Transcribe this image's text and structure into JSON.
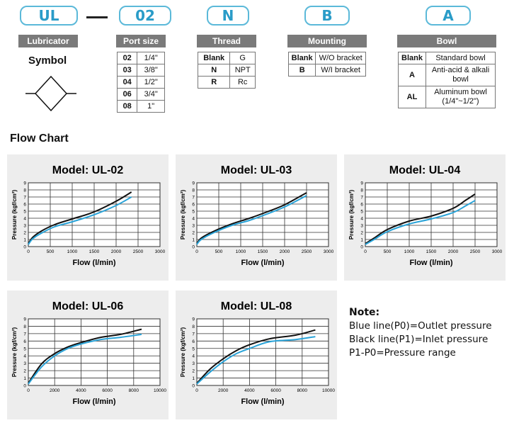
{
  "header": {
    "codes": [
      "UL",
      "02",
      "N",
      "B",
      "A"
    ],
    "lubricator_label": "Lubricator",
    "symbol_label": "Symbol"
  },
  "port_size": {
    "title": "Port size",
    "rows": [
      [
        "02",
        "1/4\""
      ],
      [
        "03",
        "3/8\""
      ],
      [
        "04",
        "1/2\""
      ],
      [
        "06",
        "3/4\""
      ],
      [
        "08",
        "1\""
      ]
    ]
  },
  "thread": {
    "title": "Thread",
    "rows": [
      [
        "Blank",
        "G"
      ],
      [
        "N",
        "NPT"
      ],
      [
        "R",
        "Rc"
      ]
    ]
  },
  "mounting": {
    "title": "Mounting",
    "rows": [
      [
        "Blank",
        "W/O bracket"
      ],
      [
        "B",
        "W/I bracket"
      ]
    ]
  },
  "bowl": {
    "title": "Bowl",
    "rows": [
      [
        "Blank",
        "Standard bowl"
      ],
      [
        "A",
        "Anti-acid & alkali bowl"
      ],
      [
        "AL",
        "Aluminum bowl (1/4\"~1/2\")"
      ]
    ]
  },
  "flow_chart_title": "Flow Chart",
  "colors": {
    "blue": "#29a3d8",
    "black": "#111111",
    "code_border": "#5bb9d9",
    "header_bg": "#7a7a7a",
    "panel_bg": "#ededed"
  },
  "chart_data": [
    {
      "type": "line",
      "title": "Model: UL-02",
      "xlabel": "Flow (l/min)",
      "ylabel": "Pressure (kgf/cm²)",
      "xlim": [
        0,
        3000
      ],
      "ylim": [
        0,
        9
      ],
      "x_ticks": [
        0,
        500,
        1000,
        1500,
        2000,
        2500,
        3000
      ],
      "y_ticks": [
        0,
        1,
        2,
        3,
        4,
        5,
        6,
        7,
        8,
        9
      ],
      "grid": true,
      "series": [
        {
          "color": "black",
          "x": [
            0,
            100,
            300,
            600,
            1000,
            1500,
            2000,
            2350
          ],
          "y": [
            0.4,
            1.3,
            2.2,
            3.1,
            3.9,
            4.9,
            6.4,
            7.7
          ]
        },
        {
          "color": "blue",
          "x": [
            0,
            100,
            300,
            600,
            1000,
            1500,
            2000,
            2350
          ],
          "y": [
            0.3,
            1.1,
            1.9,
            2.8,
            3.5,
            4.5,
            5.8,
            7.0
          ]
        }
      ]
    },
    {
      "type": "line",
      "title": "Model: UL-03",
      "xlabel": "Flow (l/min)",
      "ylabel": "Pressure (kgf/cm²)",
      "xlim": [
        0,
        3000
      ],
      "ylim": [
        0,
        9
      ],
      "x_ticks": [
        0,
        500,
        1000,
        1500,
        2000,
        2500,
        3000
      ],
      "y_ticks": [
        0,
        1,
        2,
        3,
        4,
        5,
        6,
        7,
        8,
        9
      ],
      "grid": true,
      "series": [
        {
          "color": "black",
          "x": [
            0,
            100,
            400,
            800,
            1200,
            1600,
            2000,
            2500
          ],
          "y": [
            0.4,
            1.2,
            2.2,
            3.2,
            4.0,
            4.9,
            5.9,
            7.6
          ]
        },
        {
          "color": "blue",
          "x": [
            0,
            100,
            400,
            800,
            1200,
            1600,
            2000,
            2500
          ],
          "y": [
            0.3,
            1.0,
            2.0,
            3.0,
            3.7,
            4.6,
            5.6,
            7.2
          ]
        }
      ]
    },
    {
      "type": "line",
      "title": "Model: UL-04",
      "xlabel": "Flow (l/min)",
      "ylabel": "Pressure (kgf/cm²)",
      "xlim": [
        0,
        3000
      ],
      "ylim": [
        0,
        9
      ],
      "x_ticks": [
        0,
        500,
        1000,
        1500,
        2000,
        2500,
        3000
      ],
      "y_ticks": [
        0,
        1,
        2,
        3,
        4,
        5,
        6,
        7,
        8,
        9
      ],
      "grid": true,
      "series": [
        {
          "color": "black",
          "x": [
            0,
            200,
            500,
            1000,
            1500,
            2000,
            2300,
            2500
          ],
          "y": [
            0.4,
            1.2,
            2.4,
            3.6,
            4.3,
            5.4,
            6.6,
            7.4
          ]
        },
        {
          "color": "blue",
          "x": [
            0,
            200,
            500,
            1000,
            1500,
            2000,
            2300,
            2500
          ],
          "y": [
            0.3,
            1.0,
            2.1,
            3.2,
            3.9,
            4.8,
            5.8,
            6.5
          ]
        }
      ]
    },
    {
      "type": "line",
      "title": "Model: UL-06",
      "xlabel": "Flow (l/min)",
      "ylabel": "Pressure (kgf/cm²)",
      "xlim": [
        0,
        10000
      ],
      "ylim": [
        0,
        9
      ],
      "x_ticks": [
        0,
        2000,
        4000,
        6000,
        8000,
        10000
      ],
      "y_ticks": [
        0,
        1,
        2,
        3,
        4,
        5,
        6,
        7,
        8,
        9
      ],
      "grid": true,
      "series": [
        {
          "color": "black",
          "x": [
            0,
            1000,
            2000,
            3000,
            4000,
            5500,
            7000,
            8600
          ],
          "y": [
            0.3,
            2.9,
            4.3,
            5.2,
            5.8,
            6.5,
            6.9,
            7.6
          ]
        },
        {
          "color": "blue",
          "x": [
            0,
            1000,
            2000,
            3000,
            4000,
            5500,
            7000,
            8600
          ],
          "y": [
            0.2,
            2.5,
            4.0,
            5.0,
            5.6,
            6.2,
            6.5,
            6.9
          ]
        }
      ]
    },
    {
      "type": "line",
      "title": "Model: UL-08",
      "xlabel": "Flow (l/min)",
      "ylabel": "Pressure (kgf/cm²)",
      "xlim": [
        0,
        10000
      ],
      "ylim": [
        0,
        9
      ],
      "x_ticks": [
        0,
        2000,
        4000,
        6000,
        8000,
        10000
      ],
      "y_ticks": [
        0,
        1,
        2,
        3,
        4,
        5,
        6,
        7,
        8,
        9
      ],
      "grid": true,
      "series": [
        {
          "color": "black",
          "x": [
            0,
            1000,
            2000,
            3000,
            4000,
            5500,
            7500,
            9000
          ],
          "y": [
            0.3,
            2.2,
            3.6,
            4.7,
            5.5,
            6.3,
            6.8,
            7.5
          ]
        },
        {
          "color": "blue",
          "x": [
            0,
            1000,
            2000,
            3000,
            4000,
            5500,
            7500,
            9000
          ],
          "y": [
            0.2,
            1.8,
            3.2,
            4.3,
            5.0,
            5.9,
            6.2,
            6.6
          ]
        }
      ]
    }
  ],
  "note": {
    "title": "Note:",
    "lines": [
      "Blue line(P0)=Outlet pressure",
      "Black line(P1)=Inlet pressure",
      "P1-P0=Pressure range"
    ]
  }
}
